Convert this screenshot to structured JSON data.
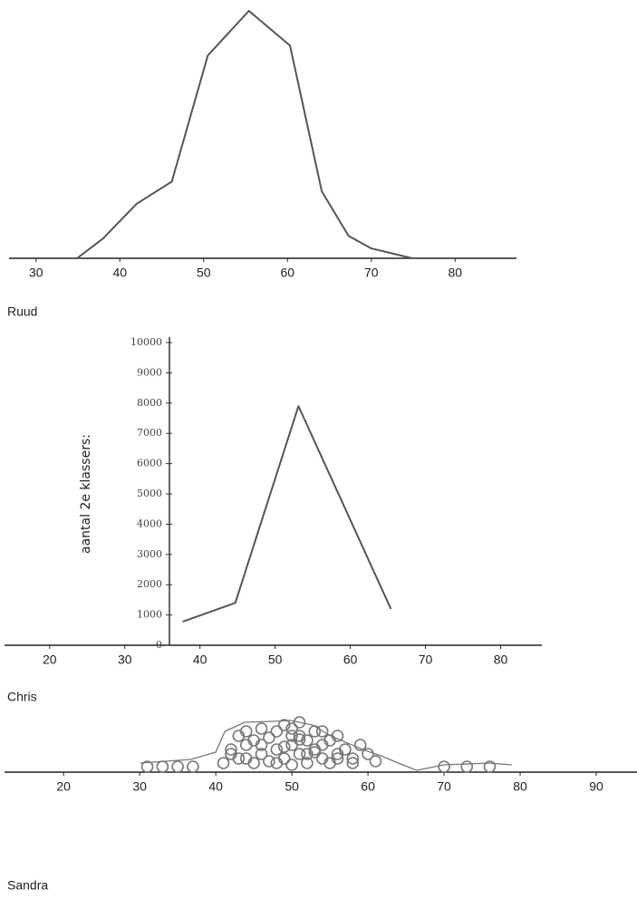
{
  "chart_data": [
    {
      "type": "line",
      "title": "Ruud",
      "color": "#555555",
      "x": [
        34.9,
        38,
        42,
        46.2,
        50.5,
        55.4,
        60.3,
        64.1,
        67.3,
        70,
        74.9
      ],
      "values": [
        0,
        8,
        22,
        31,
        82,
        100,
        86,
        27,
        9,
        4,
        0
      ],
      "xlim": [
        27,
        87
      ],
      "xticks": [
        30,
        40,
        50,
        60,
        70,
        80
      ],
      "ylim": [
        0,
        100
      ]
    },
    {
      "type": "line",
      "title": "Chris",
      "color": "#555555",
      "ylabel": "aantal 2e klassers:",
      "x": [
        37.7,
        44.7,
        53.1,
        65.4
      ],
      "values": [
        780,
        1400,
        7900,
        1200
      ],
      "xlim": [
        14,
        85
      ],
      "xticks": [
        20,
        30,
        40,
        50,
        60,
        70,
        80
      ],
      "ylim": [
        0,
        10000
      ],
      "yticks": [
        0,
        1000,
        2000,
        3000,
        4000,
        5000,
        6000,
        7000,
        8000,
        9000,
        10000
      ]
    },
    {
      "type": "scatter",
      "title": "Sandra",
      "color": "#777777",
      "series": [
        {
          "style": "circles",
          "x": [
            31,
            33,
            35,
            37,
            41,
            42,
            43,
            43,
            44,
            44,
            45,
            45,
            46,
            46,
            47,
            47,
            48,
            48,
            49,
            49,
            50,
            50,
            51,
            51,
            51,
            52,
            52,
            53,
            53,
            54,
            54,
            55,
            55,
            56,
            56,
            57,
            58,
            59,
            60,
            61,
            70,
            73,
            76,
            42,
            44,
            46,
            48,
            50,
            52,
            54,
            56,
            58,
            49,
            51,
            53,
            50
          ],
          "values": [
            6,
            6,
            6,
            6,
            10,
            25,
            40,
            15,
            30,
            45,
            10,
            35,
            20,
            48,
            12,
            38,
            25,
            45,
            15,
            52,
            30,
            48,
            20,
            40,
            55,
            10,
            35,
            25,
            45,
            15,
            30,
            10,
            35,
            20,
            40,
            25,
            15,
            30,
            20,
            12,
            6,
            6,
            6,
            20,
            15,
            30,
            10,
            40,
            20,
            45,
            15,
            10,
            28,
            36,
            22,
            8
          ]
        },
        {
          "style": "line",
          "x": [
            30.1,
            36.7,
            40,
            41.2,
            43.8,
            47.4,
            49.8,
            52.7,
            55.1,
            59.3,
            61.7,
            64,
            66.4,
            70,
            76,
            78.9
          ],
          "values": [
            10,
            14,
            22,
            45,
            55,
            56,
            57,
            52,
            40,
            25,
            18,
            10,
            2,
            8,
            10,
            8
          ]
        }
      ],
      "xlim": [
        12,
        95
      ],
      "xticks": [
        20,
        30,
        40,
        50,
        60,
        70,
        80,
        90
      ],
      "ylim": [
        0,
        60
      ]
    }
  ]
}
